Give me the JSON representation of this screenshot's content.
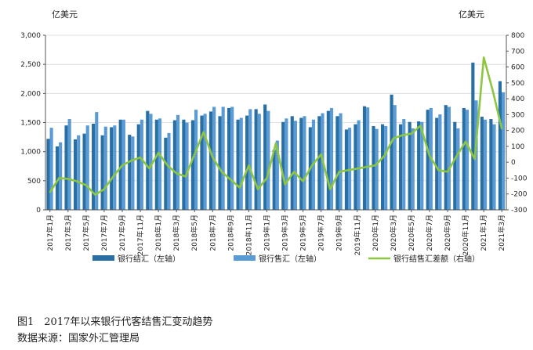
{
  "chart_data": {
    "type": "bar",
    "left_unit": "亿美元",
    "right_unit": "亿美元",
    "left_axis": {
      "min": 0,
      "max": 3000,
      "ticks": [
        "0",
        "500",
        "1,000",
        "1,500",
        "2,000",
        "2,500",
        "3,000"
      ]
    },
    "right_axis": {
      "min": -300,
      "max": 800,
      "ticks": [
        "-300",
        "-200",
        "-100",
        "0",
        "100",
        "200",
        "300",
        "400",
        "500",
        "600",
        "700",
        "800"
      ]
    },
    "x_tick_labels": [
      "2017年1月",
      "2017年3月",
      "2017年5月",
      "2017年7月",
      "2017年9月",
      "2017年11月",
      "2018年1月",
      "2018年3月",
      "2018年5月",
      "2018年7月",
      "2018年9月",
      "2018年11月",
      "2019年1月",
      "2019年3月",
      "2019年5月",
      "2019年7月",
      "2019年9月",
      "2019年11月",
      "2020年1月",
      "2020年3月",
      "2020年5月",
      "2020年7月",
      "2020年9月",
      "2020年11月",
      "2021年1月",
      "2021年3月"
    ],
    "months": [
      "2017年1月",
      "2017年2月",
      "2017年3月",
      "2017年4月",
      "2017年5月",
      "2017年6月",
      "2017年7月",
      "2017年8月",
      "2017年9月",
      "2017年10月",
      "2017年11月",
      "2017年12月",
      "2018年1月",
      "2018年2月",
      "2018年3月",
      "2018年4月",
      "2018年5月",
      "2018年6月",
      "2018年7月",
      "2018年8月",
      "2018年9月",
      "2018年10月",
      "2018年11月",
      "2018年12月",
      "2019年1月",
      "2019年2月",
      "2019年3月",
      "2019年4月",
      "2019年5月",
      "2019年6月",
      "2019年7月",
      "2019年8月",
      "2019年9月",
      "2019年10月",
      "2019年11月",
      "2019年12月",
      "2020年1月",
      "2020年2月",
      "2020年3月",
      "2020年4月",
      "2020年5月",
      "2020年6月",
      "2020年7月",
      "2020年8月",
      "2020年9月",
      "2020年10月",
      "2020年11月",
      "2020年12月",
      "2021年1月",
      "2021年2月",
      "2021年3月"
    ],
    "series": [
      {
        "name": "银行结汇（左轴）",
        "axis": "left",
        "type": "bar",
        "color": "#2a6fa3",
        "values": [
          1220,
          1090,
          1450,
          1210,
          1310,
          1480,
          1280,
          1420,
          1550,
          1290,
          1470,
          1700,
          1550,
          1240,
          1540,
          1550,
          1540,
          1620,
          1690,
          1610,
          1750,
          1550,
          1620,
          1730,
          1810,
          1030,
          1510,
          1610,
          1580,
          1420,
          1610,
          1700,
          1610,
          1380,
          1470,
          1780,
          1440,
          1470,
          1980,
          1470,
          1510,
          1520,
          1720,
          1580,
          1800,
          1510,
          1750,
          2530,
          1600,
          1560,
          2210
        ]
      },
      {
        "name": "银行售汇（左轴）",
        "axis": "left",
        "type": "bar",
        "color": "#5b9bd5",
        "values": [
          1410,
          1160,
          1560,
          1280,
          1450,
          1680,
          1430,
          1450,
          1550,
          1260,
          1550,
          1650,
          1570,
          1320,
          1630,
          1500,
          1720,
          1650,
          1770,
          1770,
          1770,
          1580,
          1730,
          1650,
          1700,
          1190,
          1570,
          1530,
          1610,
          1550,
          1660,
          1750,
          1660,
          1410,
          1540,
          1760,
          1390,
          1440,
          1800,
          1560,
          1400,
          1510,
          1750,
          1640,
          1770,
          1400,
          1720,
          1880,
          1550,
          1470,
          2020
        ]
      },
      {
        "name": "银行结售汇差额（右轴）",
        "axis": "right",
        "type": "line",
        "color": "#8dc63f",
        "values": [
          -190,
          -100,
          -105,
          -120,
          -145,
          -205,
          -170,
          -90,
          -20,
          10,
          30,
          -40,
          60,
          -20,
          -70,
          -90,
          50,
          190,
          30,
          -60,
          -110,
          -160,
          -20,
          -170,
          -100,
          120,
          -140,
          -60,
          -120,
          -20,
          50,
          -170,
          -60,
          -50,
          -40,
          -30,
          -20,
          40,
          150,
          170,
          180,
          230,
          40,
          -50,
          -60,
          40,
          130,
          20,
          660,
          450,
          210
        ]
      }
    ]
  },
  "legend": [
    {
      "label": "银行结汇（左轴）",
      "kind": "bar",
      "color": "#2a6fa3"
    },
    {
      "label": "银行售汇（左轴）",
      "kind": "bar",
      "color": "#5b9bd5"
    },
    {
      "label": "银行结售汇差额（右轴）",
      "kind": "line",
      "color": "#8dc63f"
    }
  ],
  "caption": {
    "title": "图1　2017年以来银行代客结售汇变动趋势",
    "source": "数据来源：国家外汇管理局"
  }
}
